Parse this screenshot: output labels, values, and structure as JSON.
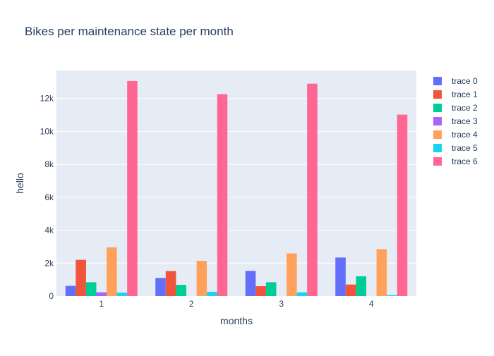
{
  "chart_data": {
    "type": "bar",
    "title": "Bikes per maintenance state per month",
    "xlabel": "months",
    "ylabel": "hello",
    "categories": [
      "1",
      "2",
      "3",
      "4"
    ],
    "ylim": [
      0,
      13700
    ],
    "yticks": [
      0,
      2000,
      4000,
      6000,
      8000,
      10000,
      12000
    ],
    "ytick_labels": [
      "0",
      "2k",
      "4k",
      "6k",
      "8k",
      "10k",
      "12k"
    ],
    "grid": true,
    "legend_position": "right",
    "plot_background": "#e5ecf6",
    "series": [
      {
        "name": "trace 0",
        "color": "#636efa",
        "values": [
          620,
          1100,
          1530,
          2340
        ]
      },
      {
        "name": "trace 1",
        "color": "#ef553b",
        "values": [
          2200,
          1520,
          600,
          700
        ]
      },
      {
        "name": "trace 2",
        "color": "#00cc96",
        "values": [
          840,
          680,
          840,
          1200
        ]
      },
      {
        "name": "trace 3",
        "color": "#ab63fa",
        "values": [
          230,
          0,
          0,
          0
        ]
      },
      {
        "name": "trace 4",
        "color": "#ffa15a",
        "values": [
          2960,
          2140,
          2590,
          2850
        ]
      },
      {
        "name": "trace 5",
        "color": "#19d3f3",
        "values": [
          210,
          260,
          230,
          60
        ]
      },
      {
        "name": "trace 6",
        "color": "#ff6692",
        "values": [
          13060,
          12260,
          12900,
          11020
        ]
      }
    ]
  }
}
